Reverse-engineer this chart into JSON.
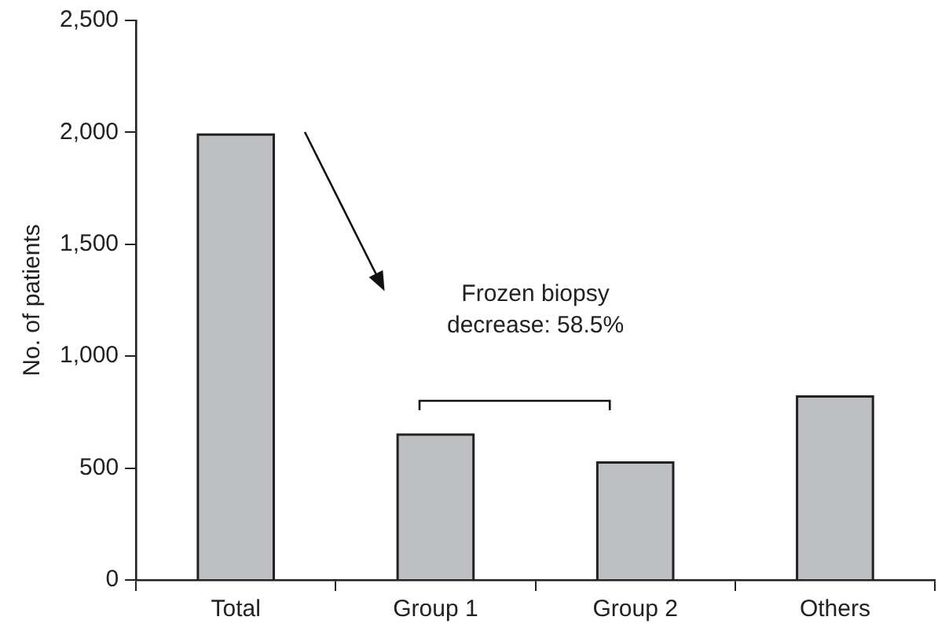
{
  "chart_data": {
    "type": "bar",
    "ylabel": "No. of patients",
    "categories": [
      "Total",
      "Group 1",
      "Group 2",
      "Others"
    ],
    "values": [
      1990,
      650,
      525,
      820
    ],
    "color": "#bebfc3",
    "ylim": [
      0,
      2500
    ],
    "yticks": [
      {
        "value": 0,
        "label": "0"
      },
      {
        "value": 500,
        "label": "500"
      },
      {
        "value": 1000,
        "label": "1,000"
      },
      {
        "value": 1500,
        "label": "1,500"
      },
      {
        "value": 2000,
        "label": "2,000"
      },
      {
        "value": 2500,
        "label": "2,500"
      }
    ],
    "grid": false,
    "legend": false,
    "annotations": [
      "Frozen biopsy\ndecrease: 58.5%"
    ]
  }
}
